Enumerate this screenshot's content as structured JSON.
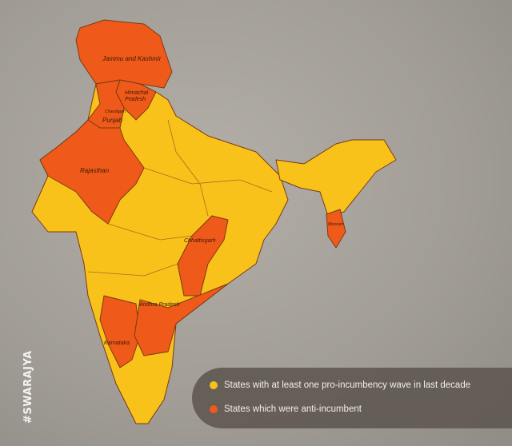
{
  "colors": {
    "pro_incumbent": "#f9c21a",
    "anti_incumbent": "#ef5a1a",
    "legend_bg": "#5f5850"
  },
  "map": {
    "labels": {
      "jk": "Jammu and Kashmir",
      "hp": "Himachal Pradesh",
      "chandigarh": "Chandigarh",
      "punjab": "Punjab",
      "rajasthan": "Rajasthan",
      "chhattisgarh": "Chhattisgarh",
      "andhra": "Andhra Pradesh",
      "karnataka": "Karnataka",
      "mizoram": "Mizoram"
    }
  },
  "legend": {
    "items": [
      {
        "label": "States with at least one pro-incumbency wave in last decade",
        "color": "#f9c21a"
      },
      {
        "label": "States which were anti-incumbent",
        "color": "#ef5a1a"
      }
    ]
  },
  "watermark": "#SWARAJYA"
}
